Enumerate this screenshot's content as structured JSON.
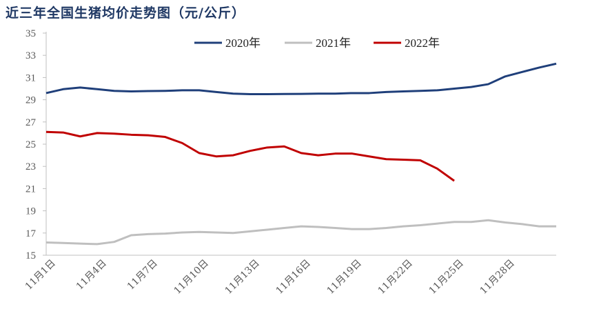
{
  "chart_data": {
    "type": "line",
    "title": "近三年全国生猪均价走势图（元/公斤）",
    "xlabel": "",
    "ylabel": "",
    "ylim": [
      15,
      35
    ],
    "yticks": [
      15,
      17,
      19,
      21,
      23,
      25,
      27,
      29,
      31,
      33,
      35
    ],
    "x_tick_labels": [
      "11月1日",
      "11月4日",
      "11月7日",
      "11月10日",
      "11月13日",
      "11月16日",
      "11月19日",
      "11月22日",
      "11月25日",
      "11月28日"
    ],
    "x_tick_every": 3,
    "legend_position": "top",
    "grid": false,
    "series": [
      {
        "name": "2020年",
        "color": "#1f3f7a",
        "values": [
          29.6,
          29.95,
          30.1,
          29.95,
          29.8,
          29.75,
          29.78,
          29.8,
          29.85,
          29.85,
          29.7,
          29.55,
          29.5,
          29.5,
          29.52,
          29.53,
          29.55,
          29.55,
          29.6,
          29.6,
          29.7,
          29.75,
          29.8,
          29.85,
          30.0,
          30.15,
          30.4,
          31.1,
          31.5,
          31.9,
          32.25
        ]
      },
      {
        "name": "2021年",
        "color": "#bfbfbf",
        "values": [
          16.15,
          16.1,
          16.05,
          16.0,
          16.2,
          16.8,
          16.9,
          16.95,
          17.05,
          17.1,
          17.05,
          17.0,
          17.15,
          17.3,
          17.45,
          17.6,
          17.55,
          17.45,
          17.35,
          17.35,
          17.45,
          17.6,
          17.7,
          17.85,
          18.0,
          18.0,
          18.15,
          17.95,
          17.8,
          17.6,
          17.6
        ]
      },
      {
        "name": "2022年",
        "color": "#c00000",
        "values": [
          26.1,
          26.05,
          25.7,
          26.0,
          25.95,
          25.85,
          25.8,
          25.65,
          25.1,
          24.2,
          23.9,
          24.0,
          24.4,
          24.7,
          24.8,
          24.2,
          24.0,
          24.15,
          24.15,
          23.9,
          23.65,
          23.6,
          23.55,
          22.8,
          21.7
        ]
      }
    ]
  }
}
